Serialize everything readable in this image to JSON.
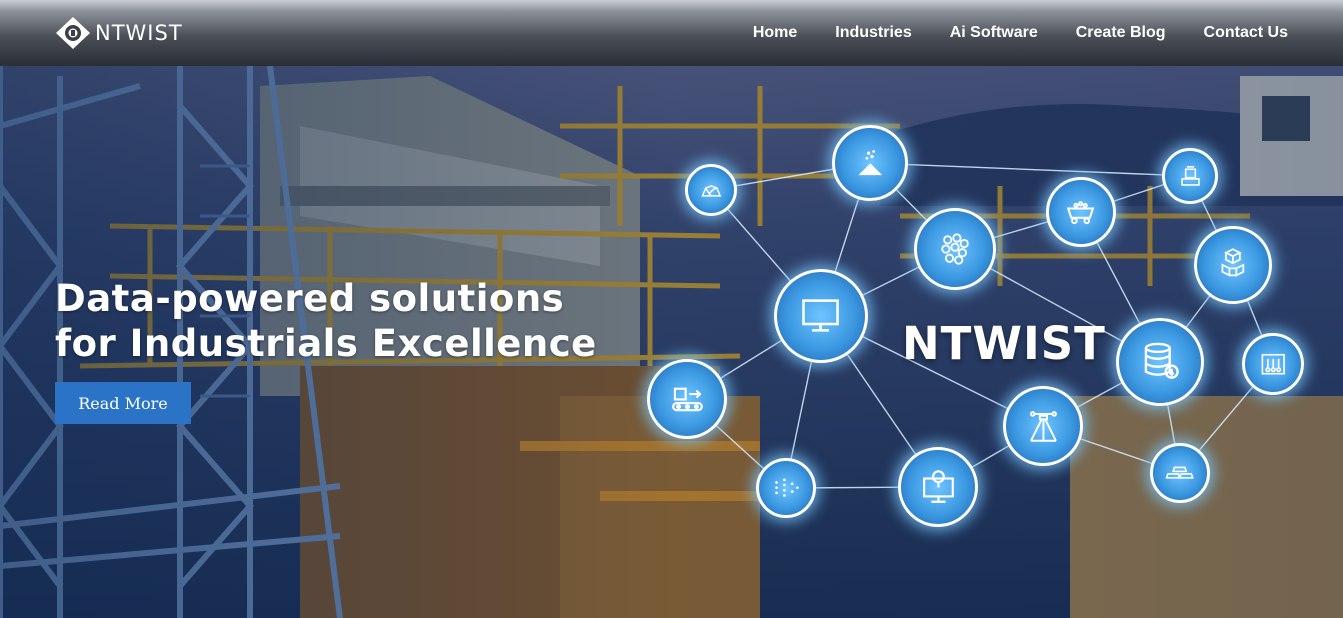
{
  "header": {
    "logo_text": "NTWIST",
    "nav": [
      {
        "label": "Home"
      },
      {
        "label": "Industries"
      },
      {
        "label": "Ai Software"
      },
      {
        "label": "Create Blog"
      },
      {
        "label": "Contact Us"
      }
    ]
  },
  "hero": {
    "headline_line1": "Data-powered solutions",
    "headline_line2": "for Industrials Excellence",
    "cta_label": "Read More",
    "brand_text": "NTWIST",
    "nodes": [
      {
        "icon": "ore-rocks-icon"
      },
      {
        "icon": "stockpile-icon"
      },
      {
        "icon": "particles-icon"
      },
      {
        "icon": "mine-cart-icon"
      },
      {
        "icon": "weighing-scale-icon"
      },
      {
        "icon": "cubes-icon"
      },
      {
        "icon": "monitor-icon"
      },
      {
        "icon": "database-icon"
      },
      {
        "icon": "conveyor-box-icon"
      },
      {
        "icon": "lab-equipment-icon"
      },
      {
        "icon": "drone-scan-icon"
      },
      {
        "icon": "neural-network-icon"
      },
      {
        "icon": "map-pin-monitor-icon"
      },
      {
        "icon": "gold-bars-icon"
      }
    ]
  },
  "colors": {
    "cta_background": "#2b73c6",
    "node_glow": "#6fc4ff",
    "header_dark": "#2a2e35"
  }
}
